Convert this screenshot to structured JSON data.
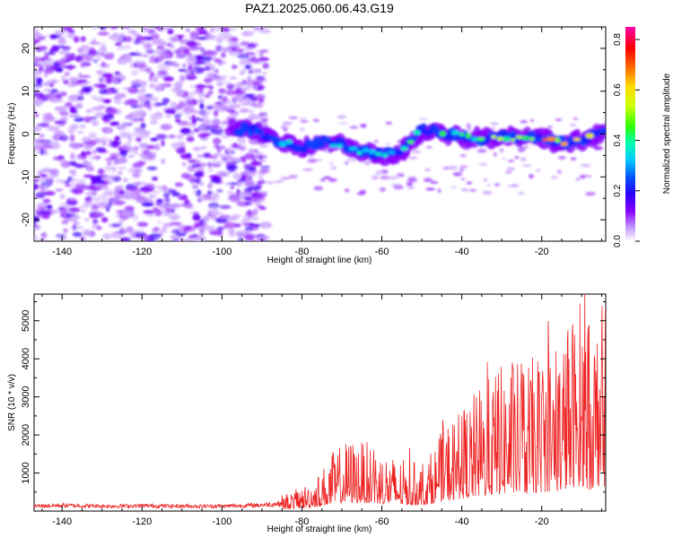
{
  "title": "PAZ1.2025.060.06.43.G19",
  "chart_data": [
    {
      "type": "heatmap",
      "xlabel": "Height of straight line (km)",
      "ylabel": "Frequency (Hz)",
      "xlim": [
        -147,
        -4
      ],
      "ylim": [
        -25,
        25
      ],
      "xticks": [
        -140,
        -120,
        -100,
        -80,
        -60,
        -40,
        -20
      ],
      "yticks": [
        -20,
        -10,
        0,
        10,
        20
      ],
      "colorbar": {
        "label": "Normalized spectral amplitude",
        "range": [
          0,
          0.85
        ],
        "ticks": [
          0.0,
          0.2,
          0.4,
          0.6,
          0.8
        ],
        "colors": [
          "#ffffff",
          "#8800ff",
          "#0000ff",
          "#00ffff",
          "#00ff00",
          "#ffff00",
          "#ff8800",
          "#ff0000",
          "#ff00aa"
        ]
      },
      "signal_track": [
        {
          "x": -98,
          "y": 1.5
        },
        {
          "x": -90,
          "y": 0.5
        },
        {
          "x": -85,
          "y": -2
        },
        {
          "x": -80,
          "y": -3
        },
        {
          "x": -75,
          "y": -2
        },
        {
          "x": -70,
          "y": -2.5
        },
        {
          "x": -65,
          "y": -4
        },
        {
          "x": -60,
          "y": -5
        },
        {
          "x": -55,
          "y": -4
        },
        {
          "x": -50,
          "y": 1
        },
        {
          "x": -45,
          "y": 0.5
        },
        {
          "x": -40,
          "y": -0.5
        },
        {
          "x": -35,
          "y": -1
        },
        {
          "x": -30,
          "y": -0.5
        },
        {
          "x": -25,
          "y": -1
        },
        {
          "x": -20,
          "y": -1
        },
        {
          "x": -15,
          "y": -2
        },
        {
          "x": -10,
          "y": -1.5
        },
        {
          "x": -5,
          "y": 0
        }
      ],
      "noise_region": {
        "x_start": -147,
        "x_end": -93
      }
    },
    {
      "type": "line",
      "xlabel": "Height of straight line (km)",
      "ylabel": "SNR (10 * v/v)",
      "xlim": [
        -147,
        -4
      ],
      "ylim": [
        0,
        5700
      ],
      "xticks": [
        -140,
        -120,
        -100,
        -80,
        -60,
        -40,
        -20
      ],
      "yticks": [
        1000,
        2000,
        3000,
        4000,
        5000
      ],
      "color": "#ee2222",
      "series": [
        {
          "values": [
            {
              "x": -147,
              "y": 130
            },
            {
              "x": -140,
              "y": 150
            },
            {
              "x": -130,
              "y": 130
            },
            {
              "x": -120,
              "y": 140
            },
            {
              "x": -110,
              "y": 130
            },
            {
              "x": -100,
              "y": 130
            },
            {
              "x": -92,
              "y": 150
            },
            {
              "x": -85,
              "y": 200
            },
            {
              "x": -80,
              "y": 300
            },
            {
              "x": -76,
              "y": 450
            },
            {
              "x": -72,
              "y": 750
            },
            {
              "x": -68,
              "y": 900
            },
            {
              "x": -64,
              "y": 850
            },
            {
              "x": -60,
              "y": 750
            },
            {
              "x": -56,
              "y": 650
            },
            {
              "x": -52,
              "y": 600
            },
            {
              "x": -48,
              "y": 700
            },
            {
              "x": -44,
              "y": 1100
            },
            {
              "x": -40,
              "y": 1300
            },
            {
              "x": -36,
              "y": 1500
            },
            {
              "x": -32,
              "y": 1700
            },
            {
              "x": -28,
              "y": 1900
            },
            {
              "x": -24,
              "y": 1800
            },
            {
              "x": -20,
              "y": 2000
            },
            {
              "x": -16,
              "y": 2100
            },
            {
              "x": -13,
              "y": 2400
            },
            {
              "x": -10,
              "y": 2700
            },
            {
              "x": -8,
              "y": 2200
            },
            {
              "x": -6,
              "y": 2600
            },
            {
              "x": -4,
              "y": 2500
            }
          ]
        }
      ]
    }
  ]
}
